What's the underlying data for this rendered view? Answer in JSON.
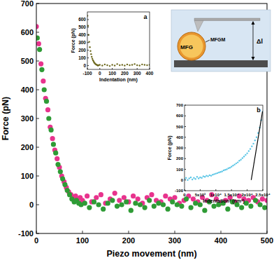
{
  "chart_data": [
    {
      "type": "scatter",
      "x_label": "Piezo movement (nm)",
      "y_label": "Force (pN)",
      "xlim": [
        0,
        500
      ],
      "ylim": [
        -100,
        700
      ],
      "xticks": [
        0,
        100,
        200,
        300,
        400,
        500
      ],
      "yticks": [
        -100,
        0,
        100,
        200,
        300,
        400,
        500,
        600,
        700
      ],
      "grid": false,
      "marker": "circle",
      "series": [
        {
          "color": "#e8338d",
          "x": [
            0,
            5,
            10,
            15,
            20,
            25,
            30,
            35,
            40,
            45,
            50,
            55,
            60,
            65,
            70,
            75,
            80,
            85,
            90,
            95,
            100,
            110,
            120,
            130,
            140,
            150,
            160,
            170,
            180,
            190,
            200,
            210,
            220,
            230,
            240,
            250,
            260,
            270,
            280,
            290,
            300,
            310,
            320,
            330,
            340,
            350,
            360,
            370,
            380,
            390,
            400,
            410,
            420,
            430,
            440,
            450,
            460,
            470,
            480,
            490,
            500
          ],
          "values": [
            620,
            560,
            490,
            430,
            370,
            330,
            270,
            230,
            190,
            160,
            130,
            100,
            80,
            60,
            45,
            35,
            25,
            30,
            20,
            25,
            15,
            30,
            10,
            25,
            35,
            5,
            20,
            40,
            15,
            25,
            10,
            30,
            20,
            5,
            25,
            35,
            15,
            10,
            30,
            20,
            25,
            5,
            15,
            30,
            20,
            10,
            25,
            15,
            35,
            20,
            5,
            15,
            25,
            10,
            30,
            20,
            15,
            25,
            10,
            20,
            15
          ]
        },
        {
          "color": "#2e9b35",
          "x": [
            2,
            7,
            12,
            17,
            22,
            27,
            32,
            37,
            42,
            47,
            52,
            57,
            62,
            67,
            72,
            77,
            82,
            87,
            92,
            97,
            105,
            115,
            125,
            135,
            145,
            155,
            165,
            175,
            185,
            195,
            205,
            215,
            225,
            235,
            245,
            255,
            265,
            275,
            285,
            295,
            305,
            315,
            325,
            335,
            345,
            355,
            365,
            375,
            385,
            395,
            405,
            415,
            425,
            435,
            445,
            455,
            465,
            475,
            485,
            495
          ],
          "values": [
            580,
            540,
            470,
            400,
            360,
            300,
            260,
            210,
            180,
            140,
            115,
            90,
            70,
            50,
            35,
            20,
            10,
            15,
            5,
            0,
            5,
            -10,
            10,
            0,
            -15,
            5,
            15,
            -5,
            0,
            10,
            -20,
            5,
            0,
            -10,
            15,
            -5,
            5,
            0,
            -15,
            10,
            0,
            -5,
            20,
            -10,
            5,
            0,
            -20,
            10,
            -5,
            0,
            5,
            -15,
            10,
            0,
            -10,
            5,
            -5,
            15,
            0,
            -10
          ]
        }
      ]
    },
    {
      "type": "scatter",
      "title": "a",
      "x_label": "Indentation (nm)",
      "y_label": "Force (pN)",
      "xlim": [
        -100,
        400
      ],
      "ylim": [
        -50,
        700
      ],
      "xticks": [
        -100,
        0,
        100,
        200,
        300,
        400
      ],
      "yticks": [
        0,
        100,
        200,
        300,
        400,
        500,
        600
      ],
      "grid": false,
      "marker": "dot",
      "series": [
        {
          "color": "#6e6a1f",
          "x": [
            -100,
            -95,
            -90,
            -85,
            -80,
            -75,
            -70,
            -65,
            -60,
            -55,
            -50,
            -45,
            -40,
            -35,
            -30,
            -25,
            -20,
            -15,
            -10,
            0,
            20,
            40,
            60,
            80,
            100,
            120,
            140,
            160,
            180,
            200,
            220,
            240,
            260,
            280,
            300,
            320,
            340,
            360,
            380,
            400
          ],
          "values": [
            650,
            520,
            400,
            310,
            240,
            190,
            150,
            115,
            90,
            70,
            55,
            40,
            30,
            20,
            15,
            10,
            5,
            0,
            5,
            10,
            0,
            15,
            5,
            -5,
            10,
            0,
            20,
            5,
            10,
            0,
            15,
            5,
            10,
            20,
            5,
            0,
            15,
            10,
            5,
            10
          ]
        }
      ]
    },
    {
      "type": "scatter",
      "title": "b",
      "x_label": "Indentation² (nm²)",
      "y_label": "Force (pN)",
      "xlim": [
        0,
        25000
      ],
      "ylim": [
        -100,
        700
      ],
      "xticks": [
        0,
        {
          "value": 5000,
          "label": "5x10³"
        },
        {
          "value": 10000,
          "label": "1x10⁴"
        },
        {
          "value": 15000,
          "label": "1.5x10⁴"
        },
        {
          "value": 20000,
          "label": "2x10⁴"
        },
        {
          "value": 25000,
          "label": "2.5x10⁴"
        }
      ],
      "yticks": [
        -100,
        0,
        100,
        200,
        300,
        400,
        500,
        600,
        700
      ],
      "grid": false,
      "marker": "dot",
      "series": [
        {
          "color": "#5cc6e6",
          "x": [
            0,
            500,
            1000,
            1500,
            2000,
            2500,
            3000,
            3500,
            4000,
            4500,
            5000,
            5500,
            6000,
            6500,
            7000,
            7500,
            8000,
            8500,
            9000,
            9500,
            10000,
            10500,
            11000,
            11500,
            12000,
            12500,
            13000,
            13500,
            14000,
            14500,
            15000,
            15500,
            16000,
            16500,
            17000,
            17500,
            18000,
            18500,
            19000,
            19500,
            20000,
            20500,
            21000,
            21500,
            22000,
            22500,
            23000,
            23500,
            24000,
            24500,
            25000
          ],
          "values": [
            10,
            20,
            0,
            15,
            25,
            5,
            20,
            10,
            30,
            15,
            25,
            20,
            35,
            30,
            40,
            35,
            45,
            40,
            50,
            55,
            60,
            65,
            70,
            75,
            80,
            90,
            95,
            100,
            110,
            115,
            125,
            135,
            145,
            155,
            165,
            180,
            190,
            205,
            220,
            235,
            250,
            270,
            290,
            315,
            340,
            370,
            400,
            440,
            490,
            560,
            640
          ]
        },
        {
          "type": "line",
          "color": "#000000",
          "x": [
            21300,
            24900
          ],
          "values": [
            0,
            640
          ]
        }
      ]
    }
  ],
  "diagram": {
    "particle": "MFG",
    "membrane": "MFGM",
    "distance": "Δl"
  }
}
